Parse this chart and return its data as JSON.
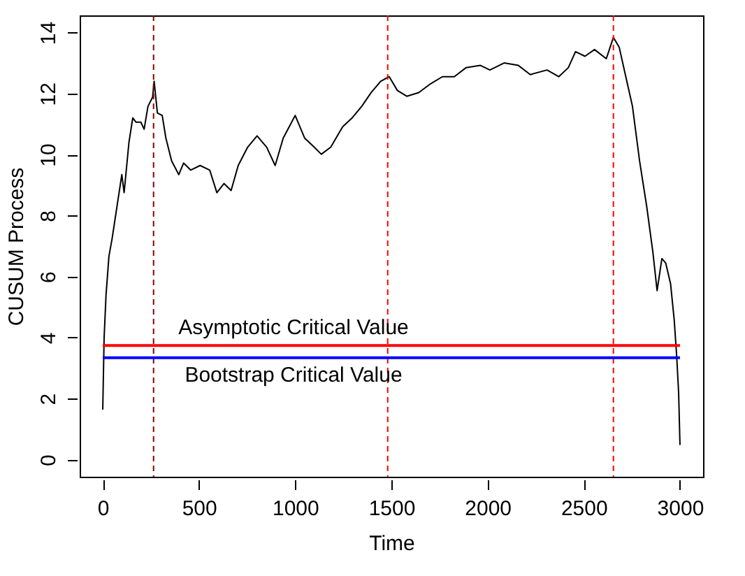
{
  "chart_data": {
    "type": "line",
    "xlabel": "Time",
    "ylabel": "CUSUM Process",
    "xlim": [
      -120,
      3120
    ],
    "ylim": [
      -0.56,
      14.56
    ],
    "xticks": [
      0,
      500,
      1000,
      1500,
      2000,
      2500,
      3000
    ],
    "yticks": [
      0,
      2,
      4,
      6,
      8,
      10,
      12,
      14
    ],
    "series": [
      {
        "color": "#000000",
        "x": [
          0,
          7,
          17,
          32,
          49,
          74,
          99,
          111,
          136,
          156,
          173,
          198,
          215,
          235,
          259,
          267,
          284,
          309,
          328,
          358,
          395,
          420,
          457,
          506,
          556,
          593,
          630,
          667,
          704,
          753,
          802,
          852,
          896,
          938,
          1000,
          1049,
          1099,
          1136,
          1185,
          1247,
          1296,
          1346,
          1395,
          1444,
          1489,
          1531,
          1580,
          1642,
          1704,
          1765,
          1827,
          1889,
          1963,
          2012,
          2086,
          2160,
          2222,
          2309,
          2370,
          2420,
          2457,
          2506,
          2556,
          2617,
          2654,
          2684,
          2716,
          2753,
          2790,
          2827,
          2859,
          2881,
          2906,
          2926,
          2951,
          2970,
          2983,
          2993,
          3000
        ],
        "values": [
          1.64,
          3.98,
          5.4,
          6.66,
          7.26,
          8.3,
          9.34,
          8.75,
          10.39,
          11.2,
          11.06,
          11.06,
          10.83,
          11.58,
          11.88,
          12.4,
          11.36,
          11.28,
          10.54,
          9.79,
          9.34,
          9.72,
          9.49,
          9.64,
          9.49,
          8.75,
          9.05,
          8.82,
          9.64,
          10.24,
          10.61,
          10.24,
          9.64,
          10.54,
          11.28,
          10.54,
          10.24,
          10.01,
          10.24,
          10.91,
          11.2,
          11.58,
          12.03,
          12.4,
          12.55,
          12.1,
          11.91,
          12.03,
          12.32,
          12.55,
          12.55,
          12.85,
          12.92,
          12.77,
          13.0,
          12.92,
          12.62,
          12.77,
          12.55,
          12.85,
          13.37,
          13.22,
          13.44,
          13.14,
          13.84,
          13.52,
          12.62,
          11.58,
          9.79,
          8.3,
          6.81,
          5.54,
          6.59,
          6.44,
          5.77,
          4.58,
          3.38,
          2.19,
          0.48
        ]
      }
    ],
    "ref_lines": [
      {
        "axis": "x",
        "value": 264,
        "color": "#8b0000",
        "line_style": "dashed"
      },
      {
        "axis": "x",
        "value": 1481,
        "color": "#ff0000",
        "line_style": "dashed"
      },
      {
        "axis": "x",
        "value": 2654,
        "color": "#ff0000",
        "line_style": "dashed"
      },
      {
        "axis": "y",
        "value": 3.74,
        "label": "Asymptotic Critical Value",
        "color": "#ff0000",
        "line_style": "solid"
      },
      {
        "axis": "y",
        "value": 3.34,
        "label": "Bootstrap Critical Value",
        "color": "#0000ff",
        "line_style": "solid"
      }
    ]
  }
}
